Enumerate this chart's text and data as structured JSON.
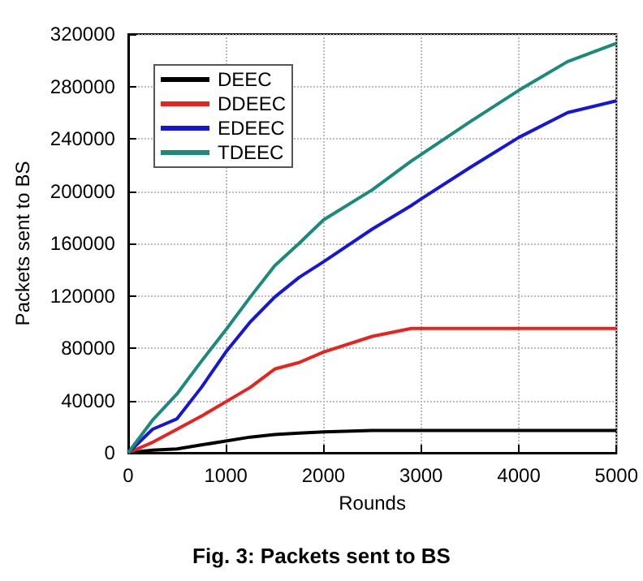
{
  "chart_data": {
    "type": "line",
    "title": "Fig. 3: Packets sent to BS",
    "xlabel": "Rounds",
    "ylabel": "Packets sent to BS",
    "x": [
      0,
      250,
      500,
      750,
      1000,
      1250,
      1500,
      1750,
      2000,
      2500,
      2900,
      3000,
      3500,
      4000,
      4500,
      5000
    ],
    "series": [
      {
        "name": "DEEC",
        "color": "#000000",
        "values": [
          0,
          2000,
          3000,
          6000,
          9000,
          12000,
          14000,
          15000,
          16000,
          17000,
          17000,
          17000,
          17000,
          17000,
          17000,
          17000
        ]
      },
      {
        "name": "DDEEC",
        "color": "#e8221c",
        "values": [
          0,
          8000,
          18000,
          28000,
          39000,
          50000,
          64000,
          69000,
          77000,
          89000,
          95000,
          95000,
          95000,
          95000,
          95000,
          95000
        ]
      },
      {
        "name": "EDEEC",
        "color": "#1616d8",
        "values": [
          0,
          18000,
          26000,
          50000,
          77000,
          100000,
          119000,
          134000,
          146000,
          171000,
          189000,
          194000,
          218000,
          241000,
          260000,
          269000
        ]
      },
      {
        "name": "TDEEC",
        "color": "#1a8a7a",
        "values": [
          0,
          25000,
          45000,
          70000,
          94000,
          119000,
          143000,
          160000,
          178000,
          201000,
          223000,
          228000,
          253000,
          277000,
          299000,
          313000
        ]
      }
    ],
    "xlim": [
      0,
      5000
    ],
    "xticks": [
      0,
      1000,
      2000,
      3000,
      4000,
      5000
    ],
    "ylim": [
      0,
      320000
    ],
    "yticks": [
      0,
      40000,
      80000,
      120000,
      160000,
      200000,
      240000,
      280000,
      320000
    ],
    "grid": true,
    "legend": "top left",
    "marker": "none",
    "line_style": "solid"
  }
}
